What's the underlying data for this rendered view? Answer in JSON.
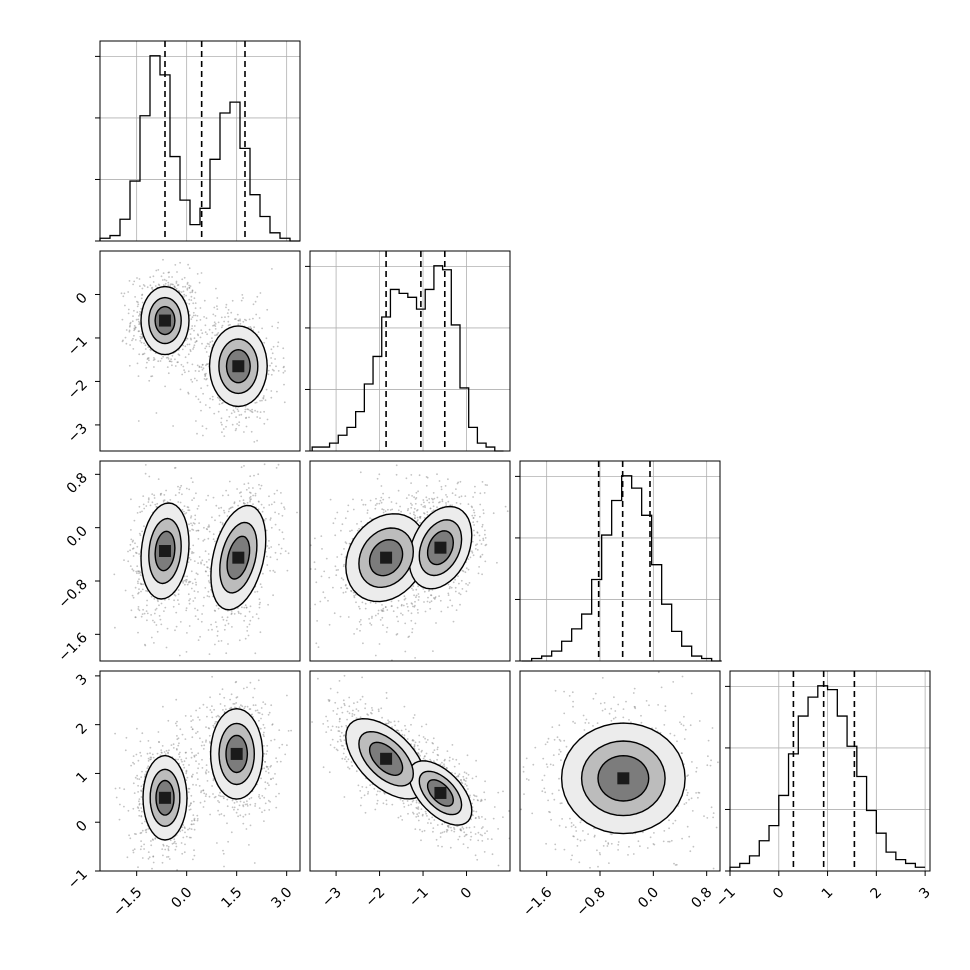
{
  "figure": {
    "type": "corner_plot"
  },
  "chart_data": {
    "type": "corner",
    "dimensions": 4,
    "variables": [
      {
        "ticks": [
          "−1.5",
          "0.0",
          "1.5",
          "3.0"
        ],
        "tick_values": [
          -1.5,
          0.0,
          1.5,
          3.0
        ],
        "range": [
          -2.6,
          3.4
        ]
      },
      {
        "ticks": [
          "−3",
          "−2",
          "−1",
          "0"
        ],
        "tick_values": [
          -3,
          -2,
          -1,
          0
        ],
        "range": [
          -3.6,
          1.0
        ]
      },
      {
        "ticks": [
          "−1.6",
          "−0.8",
          "0.0",
          "0.8"
        ],
        "tick_values": [
          -1.6,
          -0.8,
          0.0,
          0.8
        ],
        "range": [
          -2.0,
          1.0
        ]
      },
      {
        "ticks": [
          "−1",
          "0",
          "1",
          "2",
          "3"
        ],
        "tick_values": [
          -1,
          0,
          1,
          2,
          3
        ],
        "range": [
          -1.0,
          3.1
        ]
      }
    ],
    "diagonal": [
      {
        "variable": 0,
        "bins": [
          -2.45,
          -2.15,
          -1.85,
          -1.55,
          -1.25,
          -0.95,
          -0.65,
          -0.35,
          -0.05,
          0.25,
          0.55,
          0.85,
          1.15,
          1.45,
          1.75,
          2.05,
          2.35,
          2.65,
          2.95,
          3.25
        ],
        "counts": [
          1,
          2,
          8,
          22,
          46,
          68,
          61,
          31,
          15,
          6,
          12,
          30,
          47,
          51,
          34,
          17,
          9,
          3,
          1,
          0
        ],
        "quantiles": [
          -0.65,
          0.45,
          1.75
        ],
        "grid_values": [
          -1.5,
          0.0,
          1.5,
          3.0
        ]
      },
      {
        "variable": 1,
        "bins": [
          -3.45,
          -3.25,
          -3.05,
          -2.85,
          -2.65,
          -2.45,
          -2.25,
          -2.05,
          -1.85,
          -1.65,
          -1.45,
          -1.25,
          -1.05,
          -0.85,
          -0.65,
          -0.45,
          -0.25,
          -0.05,
          0.15,
          0.35,
          0.55,
          0.75
        ],
        "counts": [
          1,
          1,
          2,
          4,
          6,
          10,
          17,
          24,
          34,
          41,
          40,
          39,
          36,
          41,
          47,
          46,
          32,
          16,
          6,
          2,
          1,
          0
        ],
        "quantiles": [
          -1.85,
          -1.05,
          -0.5
        ],
        "grid_values": [
          -3,
          -2,
          -1,
          0
        ]
      },
      {
        "variable": 2,
        "bins": [
          -1.9,
          -1.75,
          -1.6,
          -1.45,
          -1.3,
          -1.15,
          -1.0,
          -0.85,
          -0.7,
          -0.55,
          -0.4,
          -0.25,
          -0.1,
          0.05,
          0.2,
          0.35,
          0.5,
          0.65,
          0.8,
          0.95
        ],
        "counts": [
          0,
          1,
          2,
          4,
          8,
          13,
          19,
          33,
          51,
          65,
          75,
          70,
          59,
          39,
          23,
          12,
          6,
          2,
          1,
          0
        ],
        "quantiles": [
          -0.82,
          -0.46,
          -0.05
        ],
        "grid_values": [
          -1.6,
          -0.8,
          0.0,
          0.8
        ]
      },
      {
        "variable": 3,
        "bins": [
          -0.9,
          -0.7,
          -0.5,
          -0.3,
          -0.1,
          0.1,
          0.3,
          0.5,
          0.7,
          0.9,
          1.1,
          1.3,
          1.5,
          1.7,
          1.9,
          2.1,
          2.3,
          2.5,
          2.7,
          2.9
        ],
        "counts": [
          1,
          2,
          4,
          8,
          12,
          20,
          31,
          41,
          46,
          49,
          48,
          41,
          33,
          25,
          16,
          10,
          5,
          3,
          2,
          1
        ],
        "quantiles": [
          0.3,
          0.92,
          1.55
        ],
        "grid_values": [
          -1,
          0,
          1,
          2,
          3
        ]
      }
    ],
    "pairs": [
      {
        "x": 0,
        "y": 1,
        "clusters": [
          {
            "center": [
              -0.65,
              -0.6
            ],
            "sd": [
              0.35,
              0.38
            ],
            "rho": 0.0
          },
          {
            "center": [
              1.55,
              -1.65
            ],
            "sd": [
              0.42,
              0.45
            ],
            "rho": 0.0
          }
        ]
      },
      {
        "x": 0,
        "y": 2,
        "clusters": [
          {
            "center": [
              -0.65,
              -0.35
            ],
            "sd": [
              0.35,
              0.35
            ],
            "rho": 0.15
          },
          {
            "center": [
              1.55,
              -0.45
            ],
            "sd": [
              0.4,
              0.38
            ],
            "rho": 0.35
          }
        ]
      },
      {
        "x": 1,
        "y": 2,
        "clusters": [
          {
            "center": [
              -1.85,
              -0.45
            ],
            "sd": [
              0.45,
              0.32
            ],
            "rho": 0.2
          },
          {
            "center": [
              -0.6,
              -0.3
            ],
            "sd": [
              0.35,
              0.3
            ],
            "rho": 0.3
          }
        ]
      },
      {
        "x": 0,
        "y": 3,
        "clusters": [
          {
            "center": [
              -0.65,
              0.5
            ],
            "sd": [
              0.32,
              0.42
            ],
            "rho": 0.0
          },
          {
            "center": [
              1.5,
              1.4
            ],
            "sd": [
              0.38,
              0.45
            ],
            "rho": 0.0
          }
        ]
      },
      {
        "x": 1,
        "y": 3,
        "clusters": [
          {
            "center": [
              -1.85,
              1.3
            ],
            "sd": [
              0.45,
              0.4
            ],
            "rho": -0.55
          },
          {
            "center": [
              -0.6,
              0.6
            ],
            "sd": [
              0.35,
              0.32
            ],
            "rho": -0.55
          }
        ]
      },
      {
        "x": 2,
        "y": 3,
        "clusters": [
          {
            "center": [
              -0.45,
              0.9
            ],
            "sd": [
              0.45,
              0.55
            ],
            "rho": 0.0
          }
        ]
      }
    ],
    "grid": true,
    "histogram_style": "step",
    "quantile_style": "dashed"
  }
}
